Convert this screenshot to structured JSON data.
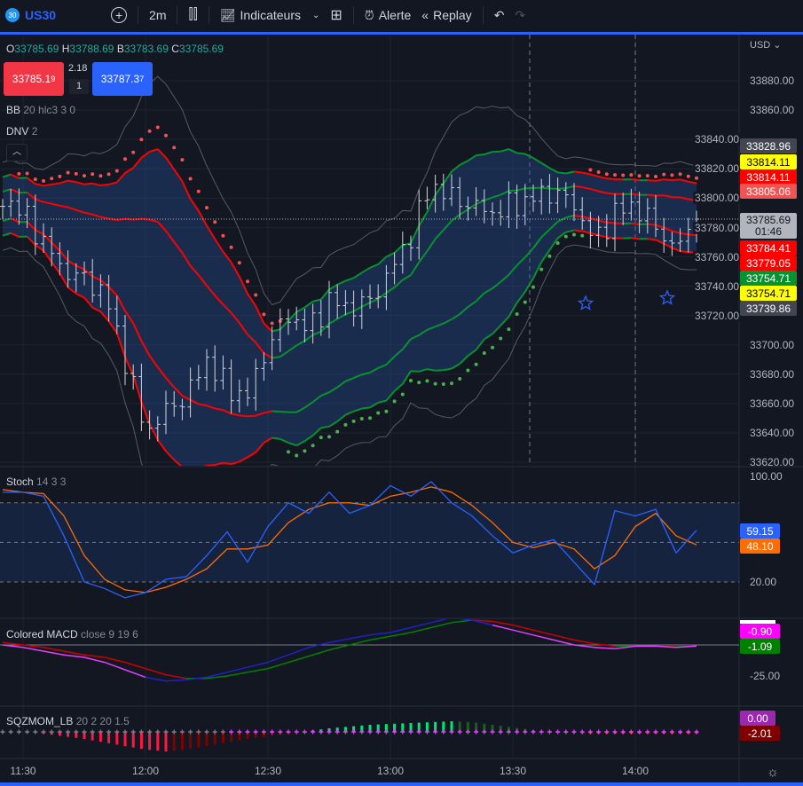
{
  "toolbar": {
    "symbol_badge": "30",
    "symbol": "US30",
    "timeframe": "2m",
    "indicators": "Indicateurs",
    "alert": "Alerte",
    "replay": "Replay"
  },
  "legend": {
    "o_label": "O",
    "o": "33785.69",
    "h_label": "H",
    "h": "33788.69",
    "b_label": "B",
    "b": "33783.69",
    "c_label": "C",
    "c": "33785.69"
  },
  "bid": {
    "main": "33785.1",
    "sup": "9"
  },
  "spread": "2.18",
  "qty": "1",
  "ask": {
    "main": "33787.3",
    "sup": "7"
  },
  "indicators": {
    "bb": "BB",
    "bb_params": "20 hlc3 3 0",
    "dnv": "DNV",
    "dnv_params": "2",
    "stoch": "Stoch",
    "stoch_params": "14 3 3",
    "macd": "Colored MACD",
    "macd_params": "close 9 19 6",
    "sqz": "SQZMOM_LB",
    "sqz_params": "20 2 20 1.5"
  },
  "currency": "USD",
  "price_axis": [
    "33880.00",
    "33860.00",
    "33840.00",
    "33820.00",
    "33800.00",
    "33780.00",
    "33760.00",
    "33740.00",
    "33720.00",
    "33700.00",
    "33680.00",
    "33660.00",
    "33640.00",
    "33620.00"
  ],
  "badges": [
    {
      "text": "33828.96",
      "bg": "#434651",
      "fg": "#ffffff"
    },
    {
      "text": "33814.11",
      "bg": "#ffff00",
      "fg": "#000000"
    },
    {
      "text": "33814.11",
      "bg": "#ff0000",
      "fg": "#ffffff"
    },
    {
      "text": "33805.06",
      "bg": "#f05353",
      "fg": "#ffffff"
    },
    {
      "text": "33784.41",
      "bg": "#ff0000",
      "fg": "#ffffff"
    },
    {
      "text": "33779.05",
      "bg": "#ff0000",
      "fg": "#ffffff"
    },
    {
      "text": "33754.71",
      "bg": "#089130",
      "fg": "#ffffff"
    },
    {
      "text": "33754.71",
      "bg": "#ffff00",
      "fg": "#000000"
    },
    {
      "text": "33739.86",
      "bg": "#434651",
      "fg": "#ffffff"
    }
  ],
  "last_price": {
    "price": "33785.69",
    "countdown": "01:46"
  },
  "stoch_axis": {
    "top": "100.00",
    "bottom": "20.00",
    "k": "59.15",
    "d": "48.10"
  },
  "macd_axis": {
    "label": "-25.00",
    "macd": "-0.90",
    "signal": "-1.09"
  },
  "sqz_axis": {
    "zero": "0.00",
    "mom": "-2.01"
  },
  "time_labels": [
    "11:30",
    "12:00",
    "12:30",
    "13:00",
    "13:30",
    "14:00"
  ],
  "colors": {
    "up": "#089130",
    "down": "#ff0000",
    "accent": "#2962ff",
    "stoch_k": "#2962ff",
    "stoch_d": "#ff6d00",
    "macd": "#1e22c8",
    "macd_tail": "#e040fb"
  },
  "chart_data": {
    "type": "line",
    "minutes_from_1130": [
      -5,
      0,
      5,
      10,
      15,
      20,
      25,
      30,
      35,
      40,
      45,
      50,
      55,
      60,
      65,
      70,
      75,
      80,
      85,
      90,
      95,
      100,
      105,
      110,
      115,
      120,
      125,
      130,
      135,
      140,
      145,
      150,
      155,
      160,
      165
    ],
    "close": [
      33800,
      33790,
      33770,
      33750,
      33745,
      33735,
      33690,
      33640,
      33655,
      33665,
      33690,
      33670,
      33665,
      33700,
      33720,
      33710,
      33730,
      33725,
      33730,
      33750,
      33775,
      33810,
      33800,
      33795,
      33790,
      33795,
      33800,
      33805,
      33795,
      33770,
      33790,
      33795,
      33780,
      33765,
      33785.69
    ],
    "stoch_k": [
      88,
      88,
      85,
      55,
      20,
      15,
      8,
      12,
      22,
      24,
      40,
      58,
      35,
      62,
      80,
      72,
      88,
      72,
      78,
      93,
      85,
      96,
      80,
      70,
      55,
      42,
      48,
      52,
      35,
      18,
      74,
      70,
      75,
      42,
      59.15
    ],
    "stoch_d": [
      90,
      88,
      87,
      70,
      40,
      22,
      14,
      12,
      16,
      22,
      30,
      45,
      45,
      48,
      65,
      75,
      80,
      80,
      78,
      85,
      88,
      92,
      88,
      78,
      65,
      50,
      46,
      50,
      45,
      30,
      40,
      62,
      72,
      55,
      48.1
    ],
    "macd": [
      0,
      -2,
      -5,
      -8,
      -10,
      -14,
      -20,
      -26,
      -29,
      -28,
      -26,
      -22,
      -18,
      -14,
      -8,
      -2,
      2,
      5,
      8,
      10,
      14,
      18,
      22,
      20,
      16,
      12,
      8,
      4,
      0,
      -2,
      -3,
      -1,
      -1,
      -2,
      -0.9
    ],
    "macd_signal": [
      2,
      0,
      -2,
      -5,
      -8,
      -10,
      -14,
      -19,
      -24,
      -27,
      -27,
      -25,
      -22,
      -19,
      -14,
      -9,
      -4,
      0,
      4,
      7,
      10,
      14,
      18,
      20,
      19,
      16,
      12,
      8,
      4,
      1,
      -1,
      -1,
      -1,
      -1.5,
      -1.09
    ],
    "sqz_mom": [
      0,
      0,
      -2,
      -5,
      -8,
      -12,
      -16,
      -20,
      -22,
      -20,
      -16,
      -12,
      -8,
      -5,
      -2,
      1,
      4,
      6,
      8,
      9,
      10,
      11,
      12,
      11,
      8,
      5,
      2,
      0,
      -1,
      -2,
      -2,
      -2,
      -2,
      -2,
      -2.01
    ],
    "ylim_price": [
      33610,
      33895
    ],
    "ylim_stoch": [
      0,
      100
    ]
  }
}
